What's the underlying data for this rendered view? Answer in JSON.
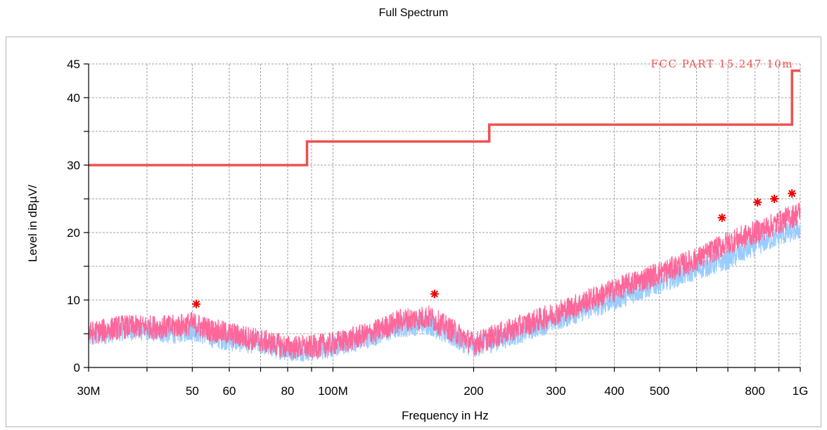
{
  "chart_data": {
    "type": "line",
    "title": "Full Spectrum",
    "xlabel": "Frequency in Hz",
    "ylabel": "Level in dBµV/",
    "x_scale": "log",
    "xlim": [
      30000000,
      1000000000
    ],
    "ylim": [
      0,
      45
    ],
    "grid": true,
    "x_tick_labels": [
      {
        "value": 30000000,
        "label": "30M"
      },
      {
        "value": 50000000,
        "label": "50"
      },
      {
        "value": 60000000,
        "label": "60"
      },
      {
        "value": 80000000,
        "label": "80"
      },
      {
        "value": 100000000,
        "label": "100M"
      },
      {
        "value": 200000000,
        "label": "200"
      },
      {
        "value": 300000000,
        "label": "300"
      },
      {
        "value": 400000000,
        "label": "400"
      },
      {
        "value": 500000000,
        "label": "500"
      },
      {
        "value": 800000000,
        "label": "800"
      },
      {
        "value": 1000000000,
        "label": "1G"
      }
    ],
    "y_tick_labels": [
      {
        "value": 0,
        "label": "0"
      },
      {
        "value": 10,
        "label": "10"
      },
      {
        "value": 20,
        "label": "20"
      },
      {
        "value": 30,
        "label": "30"
      },
      {
        "value": 40,
        "label": "40"
      },
      {
        "value": 45,
        "label": "45"
      }
    ],
    "limit_line": {
      "name": "FCC PART 15.247 10m",
      "color": "#f05050",
      "x": [
        30000000,
        88000000,
        88000000,
        216000000,
        216000000,
        960000000,
        960000000,
        1000000000
      ],
      "y": [
        30,
        30,
        33.5,
        33.5,
        36,
        36,
        44,
        44
      ]
    },
    "series": [
      {
        "color": "#99ccff",
        "x": [
          30000000,
          35000000,
          40000000,
          45000000,
          50000000,
          55000000,
          60000000,
          70000000,
          80000000,
          90000000,
          100000000,
          120000000,
          140000000,
          160000000,
          180000000,
          200000000,
          250000000,
          300000000,
          400000000,
          500000000,
          600000000,
          700000000,
          800000000,
          900000000,
          1000000000
        ],
        "y": [
          4.5,
          5.5,
          5.5,
          5.0,
          5.5,
          4.5,
          4.0,
          3.5,
          2.5,
          2.5,
          3.0,
          4.5,
          6.0,
          6.5,
          4.5,
          3.0,
          5.0,
          7.0,
          10.0,
          12.5,
          14.5,
          16.0,
          18.0,
          19.5,
          20.5
        ]
      },
      {
        "color": "#ff6699",
        "x": [
          30000000,
          35000000,
          40000000,
          45000000,
          50000000,
          55000000,
          60000000,
          70000000,
          80000000,
          90000000,
          100000000,
          120000000,
          140000000,
          160000000,
          180000000,
          200000000,
          250000000,
          300000000,
          400000000,
          500000000,
          600000000,
          700000000,
          800000000,
          900000000,
          1000000000
        ],
        "y": [
          5.0,
          6.0,
          6.0,
          6.0,
          6.5,
          5.5,
          5.0,
          4.0,
          3.0,
          3.0,
          3.5,
          5.0,
          7.0,
          7.5,
          5.5,
          3.5,
          6.0,
          8.0,
          11.5,
          14.0,
          16.0,
          18.5,
          20.0,
          21.5,
          23.0
        ]
      }
    ],
    "peak_markers": {
      "color": "#ee0000",
      "x": [
        51000000,
        165000000,
        680000000,
        810000000,
        880000000,
        960000000
      ],
      "y": [
        9.4,
        10.9,
        22.2,
        24.5,
        25.0,
        25.8
      ]
    }
  }
}
